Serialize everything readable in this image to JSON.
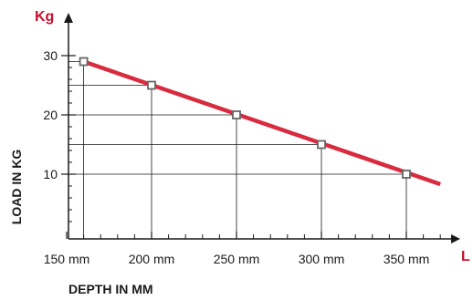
{
  "chart_data": {
    "type": "line",
    "title": "",
    "xlabel": "DEPTH IN MM",
    "ylabel": "LOAD IN KG",
    "x_unit_label": "L",
    "y_unit_label": "Kg",
    "x_ticks": [
      "150 mm",
      "200 mm",
      "250 mm",
      "300 mm",
      "350 mm"
    ],
    "y_ticks": [
      "30",
      "20",
      "10"
    ],
    "xlim": [
      150,
      375
    ],
    "ylim": [
      0,
      32
    ],
    "grid": false,
    "series": [
      {
        "color": "#d92b3f",
        "x": [
          160,
          200,
          250,
          300,
          350
        ],
        "values": [
          29,
          25,
          20,
          15,
          10
        ]
      }
    ],
    "line_end": {
      "x": 370,
      "y": 8.3
    },
    "colors": {
      "line": "#d92b3f",
      "axis": "#1a1a1a",
      "unit_label": "#c8102e",
      "marker_stroke": "#666666",
      "marker_fill": "#ffffff"
    }
  }
}
